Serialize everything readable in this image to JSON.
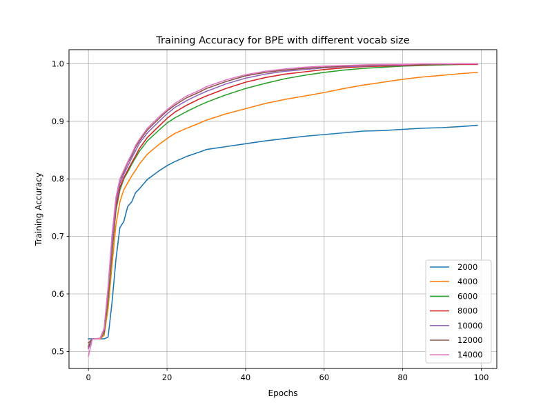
{
  "chart_data": {
    "type": "line",
    "title": "Training Accuracy for BPE with different vocab size",
    "xlabel": "Epochs",
    "ylabel": "Training Accuracy",
    "xlim": [
      -4.95,
      103.95
    ],
    "ylim": [
      0.4705,
      1.0245
    ],
    "xticks": [
      0,
      20,
      40,
      60,
      80,
      100
    ],
    "yticks": [
      0.5,
      0.6,
      0.7,
      0.8,
      0.9,
      1.0
    ],
    "xtick_labels": [
      "0",
      "20",
      "40",
      "60",
      "80",
      "100"
    ],
    "ytick_labels": [
      "0.5",
      "0.6",
      "0.7",
      "0.8",
      "0.9",
      "1.0"
    ],
    "grid": true,
    "legend_position": "lower-right",
    "series": [
      {
        "name": "2000",
        "color": "#1f77b4",
        "points": [
          [
            0,
            0.522
          ],
          [
            1,
            0.522
          ],
          [
            2,
            0.522
          ],
          [
            3,
            0.522
          ],
          [
            4,
            0.522
          ],
          [
            5,
            0.525
          ],
          [
            6,
            0.585
          ],
          [
            7,
            0.66
          ],
          [
            8,
            0.715
          ],
          [
            9,
            0.726
          ],
          [
            10,
            0.752
          ],
          [
            11,
            0.76
          ],
          [
            12,
            0.776
          ],
          [
            13,
            0.783
          ],
          [
            15,
            0.799
          ],
          [
            18,
            0.814
          ],
          [
            20,
            0.823
          ],
          [
            22,
            0.83
          ],
          [
            25,
            0.839
          ],
          [
            28,
            0.846
          ],
          [
            30,
            0.851
          ],
          [
            35,
            0.856
          ],
          [
            40,
            0.861
          ],
          [
            45,
            0.866
          ],
          [
            50,
            0.87
          ],
          [
            55,
            0.874
          ],
          [
            60,
            0.877
          ],
          [
            65,
            0.88
          ],
          [
            70,
            0.883
          ],
          [
            75,
            0.884
          ],
          [
            80,
            0.886
          ],
          [
            85,
            0.888
          ],
          [
            90,
            0.889
          ],
          [
            95,
            0.891
          ],
          [
            99,
            0.893
          ]
        ]
      },
      {
        "name": "4000",
        "color": "#ff7f0e",
        "points": [
          [
            0,
            0.508
          ],
          [
            1,
            0.522
          ],
          [
            2,
            0.522
          ],
          [
            3,
            0.522
          ],
          [
            4,
            0.528
          ],
          [
            5,
            0.575
          ],
          [
            6,
            0.65
          ],
          [
            7,
            0.72
          ],
          [
            8,
            0.76
          ],
          [
            9,
            0.781
          ],
          [
            10,
            0.793
          ],
          [
            11,
            0.805
          ],
          [
            12,
            0.815
          ],
          [
            13,
            0.826
          ],
          [
            15,
            0.843
          ],
          [
            18,
            0.86
          ],
          [
            20,
            0.87
          ],
          [
            22,
            0.879
          ],
          [
            25,
            0.888
          ],
          [
            28,
            0.896
          ],
          [
            30,
            0.902
          ],
          [
            35,
            0.913
          ],
          [
            40,
            0.922
          ],
          [
            45,
            0.931
          ],
          [
            50,
            0.938
          ],
          [
            55,
            0.944
          ],
          [
            60,
            0.95
          ],
          [
            65,
            0.957
          ],
          [
            70,
            0.963
          ],
          [
            75,
            0.968
          ],
          [
            80,
            0.973
          ],
          [
            85,
            0.977
          ],
          [
            90,
            0.98
          ],
          [
            95,
            0.983
          ],
          [
            99,
            0.985
          ]
        ]
      },
      {
        "name": "6000",
        "color": "#2ca02c",
        "points": [
          [
            0,
            0.51
          ],
          [
            1,
            0.522
          ],
          [
            2,
            0.522
          ],
          [
            3,
            0.523
          ],
          [
            4,
            0.532
          ],
          [
            5,
            0.59
          ],
          [
            6,
            0.67
          ],
          [
            7,
            0.745
          ],
          [
            8,
            0.78
          ],
          [
            9,
            0.8
          ],
          [
            10,
            0.812
          ],
          [
            11,
            0.825
          ],
          [
            12,
            0.837
          ],
          [
            13,
            0.848
          ],
          [
            15,
            0.866
          ],
          [
            18,
            0.885
          ],
          [
            20,
            0.897
          ],
          [
            22,
            0.906
          ],
          [
            25,
            0.917
          ],
          [
            28,
            0.927
          ],
          [
            30,
            0.933
          ],
          [
            35,
            0.946
          ],
          [
            40,
            0.957
          ],
          [
            45,
            0.966
          ],
          [
            50,
            0.974
          ],
          [
            55,
            0.98
          ],
          [
            60,
            0.985
          ],
          [
            65,
            0.989
          ],
          [
            70,
            0.992
          ],
          [
            75,
            0.994
          ],
          [
            80,
            0.996
          ],
          [
            85,
            0.997
          ],
          [
            90,
            0.998
          ],
          [
            95,
            0.999
          ],
          [
            99,
            0.999
          ]
        ]
      },
      {
        "name": "8000",
        "color": "#d62728",
        "points": [
          [
            0,
            0.508
          ],
          [
            1,
            0.522
          ],
          [
            2,
            0.522
          ],
          [
            3,
            0.523
          ],
          [
            4,
            0.535
          ],
          [
            5,
            0.6
          ],
          [
            6,
            0.68
          ],
          [
            7,
            0.75
          ],
          [
            8,
            0.785
          ],
          [
            9,
            0.802
          ],
          [
            10,
            0.815
          ],
          [
            11,
            0.828
          ],
          [
            12,
            0.84
          ],
          [
            13,
            0.853
          ],
          [
            15,
            0.872
          ],
          [
            18,
            0.892
          ],
          [
            20,
            0.905
          ],
          [
            22,
            0.916
          ],
          [
            25,
            0.928
          ],
          [
            28,
            0.938
          ],
          [
            30,
            0.944
          ],
          [
            35,
            0.957
          ],
          [
            40,
            0.968
          ],
          [
            45,
            0.976
          ],
          [
            50,
            0.982
          ],
          [
            55,
            0.986
          ],
          [
            60,
            0.99
          ],
          [
            65,
            0.993
          ],
          [
            70,
            0.995
          ],
          [
            75,
            0.996
          ],
          [
            80,
            0.997
          ],
          [
            85,
            0.998
          ],
          [
            90,
            0.999
          ],
          [
            95,
            0.999
          ],
          [
            99,
            0.999
          ]
        ]
      },
      {
        "name": "10000",
        "color": "#9467bd",
        "points": [
          [
            0,
            0.505
          ],
          [
            1,
            0.522
          ],
          [
            2,
            0.522
          ],
          [
            3,
            0.523
          ],
          [
            4,
            0.537
          ],
          [
            5,
            0.605
          ],
          [
            6,
            0.685
          ],
          [
            7,
            0.758
          ],
          [
            8,
            0.792
          ],
          [
            9,
            0.808
          ],
          [
            10,
            0.822
          ],
          [
            11,
            0.836
          ],
          [
            12,
            0.849
          ],
          [
            13,
            0.862
          ],
          [
            15,
            0.88
          ],
          [
            18,
            0.9
          ],
          [
            20,
            0.913
          ],
          [
            22,
            0.924
          ],
          [
            25,
            0.936
          ],
          [
            28,
            0.946
          ],
          [
            30,
            0.952
          ],
          [
            35,
            0.965
          ],
          [
            40,
            0.975
          ],
          [
            45,
            0.982
          ],
          [
            50,
            0.987
          ],
          [
            55,
            0.99
          ],
          [
            60,
            0.993
          ],
          [
            65,
            0.995
          ],
          [
            70,
            0.996
          ],
          [
            75,
            0.997
          ],
          [
            80,
            0.998
          ],
          [
            85,
            0.999
          ],
          [
            90,
            0.999
          ],
          [
            95,
            1.0
          ],
          [
            99,
            1.0
          ]
        ]
      },
      {
        "name": "12000",
        "color": "#8c564b",
        "points": [
          [
            0,
            0.515
          ],
          [
            1,
            0.522
          ],
          [
            2,
            0.522
          ],
          [
            3,
            0.523
          ],
          [
            4,
            0.54
          ],
          [
            5,
            0.61
          ],
          [
            6,
            0.7
          ],
          [
            7,
            0.765
          ],
          [
            8,
            0.798
          ],
          [
            9,
            0.812
          ],
          [
            10,
            0.828
          ],
          [
            11,
            0.84
          ],
          [
            12,
            0.855
          ],
          [
            13,
            0.866
          ],
          [
            15,
            0.885
          ],
          [
            18,
            0.905
          ],
          [
            20,
            0.918
          ],
          [
            22,
            0.928
          ],
          [
            25,
            0.941
          ],
          [
            28,
            0.95
          ],
          [
            30,
            0.957
          ],
          [
            35,
            0.969
          ],
          [
            40,
            0.979
          ],
          [
            45,
            0.985
          ],
          [
            50,
            0.989
          ],
          [
            55,
            0.992
          ],
          [
            60,
            0.994
          ],
          [
            65,
            0.996
          ],
          [
            70,
            0.997
          ],
          [
            75,
            0.998
          ],
          [
            80,
            0.999
          ],
          [
            85,
            0.999
          ],
          [
            90,
            0.999
          ],
          [
            95,
            1.0
          ],
          [
            99,
            1.0
          ]
        ]
      },
      {
        "name": "14000",
        "color": "#e377c2",
        "points": [
          [
            0,
            0.492
          ],
          [
            1,
            0.522
          ],
          [
            2,
            0.522
          ],
          [
            3,
            0.523
          ],
          [
            4,
            0.54
          ],
          [
            5,
            0.612
          ],
          [
            6,
            0.702
          ],
          [
            7,
            0.768
          ],
          [
            8,
            0.8
          ],
          [
            9,
            0.815
          ],
          [
            10,
            0.83
          ],
          [
            11,
            0.843
          ],
          [
            12,
            0.858
          ],
          [
            13,
            0.869
          ],
          [
            15,
            0.888
          ],
          [
            18,
            0.908
          ],
          [
            20,
            0.92
          ],
          [
            22,
            0.931
          ],
          [
            25,
            0.944
          ],
          [
            28,
            0.953
          ],
          [
            30,
            0.96
          ],
          [
            35,
            0.972
          ],
          [
            40,
            0.981
          ],
          [
            45,
            0.987
          ],
          [
            50,
            0.991
          ],
          [
            55,
            0.994
          ],
          [
            60,
            0.996
          ],
          [
            65,
            0.997
          ],
          [
            70,
            0.998
          ],
          [
            75,
            0.999
          ],
          [
            80,
            0.999
          ],
          [
            85,
            1.0
          ],
          [
            90,
            1.0
          ],
          [
            95,
            1.0
          ],
          [
            99,
            1.0
          ]
        ]
      }
    ]
  }
}
